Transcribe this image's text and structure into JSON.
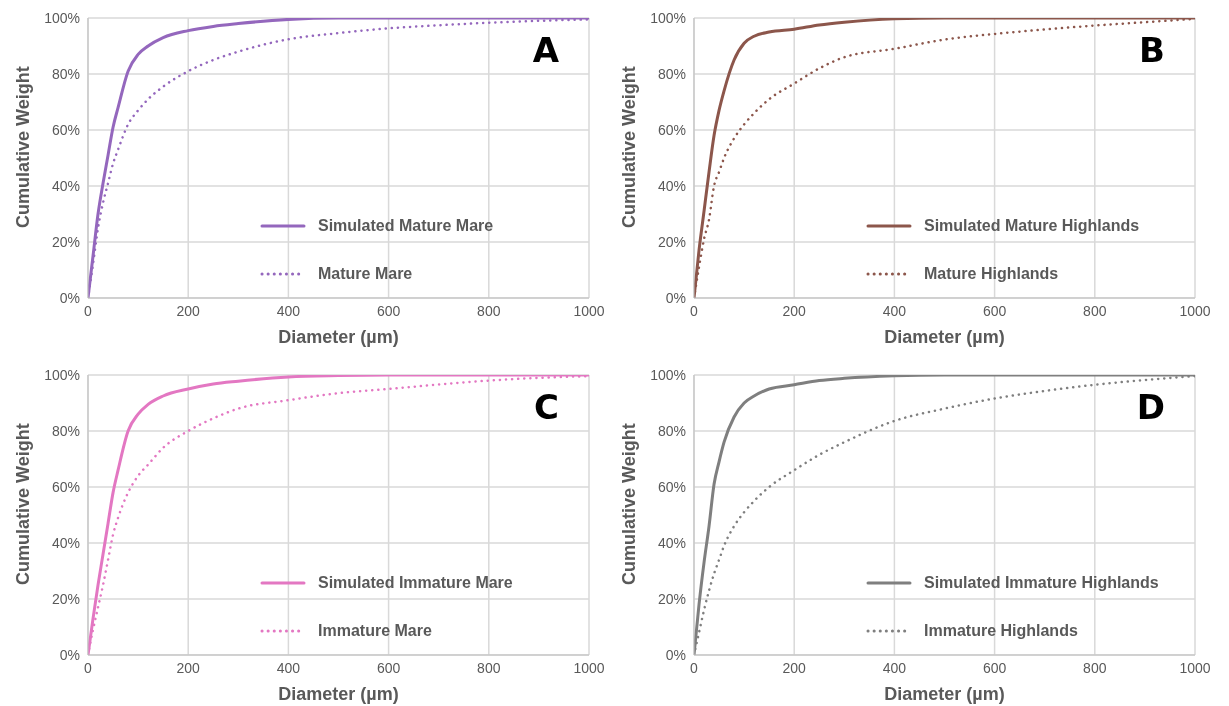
{
  "chart_data": [
    {
      "type": "line",
      "xlabel": "Diameter (µm)",
      "ylabel": "Cumulative Weight",
      "annotations": [
        "A"
      ],
      "grid": true,
      "legend": "bottom right",
      "xlim": [
        0,
        1000
      ],
      "xticks": [
        0,
        200,
        400,
        600,
        800,
        1000
      ],
      "ylim": [
        0,
        100
      ],
      "yticks": [
        {
          "value": 0,
          "label": "0%"
        },
        {
          "value": 20,
          "label": "20%"
        },
        {
          "value": 40,
          "label": "40%"
        },
        {
          "value": 60,
          "label": "60%"
        },
        {
          "value": 80,
          "label": "80%"
        },
        {
          "value": 100,
          "label": "100%"
        }
      ],
      "x": [
        0,
        10,
        20,
        30,
        40,
        50,
        60,
        80,
        100,
        120,
        150,
        200,
        250,
        300,
        400,
        500,
        600,
        700,
        800,
        900,
        1000
      ],
      "series": [
        {
          "name": "Simulated Mature Mare",
          "color": "#9467bd",
          "line_style": "solid",
          "values": [
            0,
            15,
            30,
            41,
            51,
            61,
            68,
            81,
            87,
            90,
            93,
            95.5,
            97,
            98,
            99.5,
            100,
            100,
            100,
            100,
            100,
            100
          ]
        },
        {
          "name": "Mature Mare",
          "color": "#9467bd",
          "line_style": "dotted",
          "values": [
            0,
            12,
            25,
            34,
            41,
            48,
            53,
            62,
            67,
            71,
            75.5,
            81,
            85,
            88,
            92.4,
            94.6,
            96.3,
            97.4,
            98.3,
            99,
            99.5
          ]
        }
      ]
    },
    {
      "type": "line",
      "xlabel": "Diameter (µm)",
      "ylabel": "Cumulative Weight",
      "annotations": [
        "B"
      ],
      "grid": true,
      "legend": "bottom right",
      "xlim": [
        0,
        1000
      ],
      "xticks": [
        0,
        200,
        400,
        600,
        800,
        1000
      ],
      "ylim": [
        0,
        100
      ],
      "yticks": [
        {
          "value": 0,
          "label": "0%"
        },
        {
          "value": 20,
          "label": "20%"
        },
        {
          "value": 40,
          "label": "40%"
        },
        {
          "value": 60,
          "label": "60%"
        },
        {
          "value": 80,
          "label": "80%"
        },
        {
          "value": 100,
          "label": "100%"
        }
      ],
      "x": [
        0,
        10,
        20,
        30,
        40,
        50,
        60,
        80,
        100,
        120,
        150,
        200,
        250,
        300,
        400,
        500,
        600,
        700,
        800,
        900,
        1000
      ],
      "series": [
        {
          "name": "Simulated Mature Highlands",
          "color": "#8c564b",
          "line_style": "solid",
          "values": [
            0,
            17,
            31,
            45,
            58,
            67,
            74,
            85,
            91,
            93.5,
            95,
            96,
            97.5,
            98.5,
            99.7,
            100,
            100,
            100,
            100,
            100,
            100
          ]
        },
        {
          "name": "Mature Highlands",
          "color": "#8c564b",
          "line_style": "dotted",
          "values": [
            0,
            11,
            21,
            28,
            40,
            45,
            50,
            57,
            62,
            66,
            71,
            76.6,
            82,
            86,
            89,
            92.3,
            94.3,
            95.9,
            97.3,
            98.5,
            99.7
          ]
        }
      ]
    },
    {
      "type": "line",
      "xlabel": "Diameter (µm)",
      "ylabel": "Cumulative Weight",
      "annotations": [
        "C"
      ],
      "grid": true,
      "legend": "bottom right",
      "xlim": [
        0,
        1000
      ],
      "xticks": [
        0,
        200,
        400,
        600,
        800,
        1000
      ],
      "ylim": [
        0,
        100
      ],
      "yticks": [
        {
          "value": 0,
          "label": "0%"
        },
        {
          "value": 20,
          "label": "20%"
        },
        {
          "value": 40,
          "label": "40%"
        },
        {
          "value": 60,
          "label": "60%"
        },
        {
          "value": 80,
          "label": "80%"
        },
        {
          "value": 100,
          "label": "100%"
        }
      ],
      "x": [
        0,
        10,
        20,
        30,
        40,
        50,
        60,
        80,
        100,
        120,
        150,
        200,
        250,
        300,
        400,
        500,
        600,
        700,
        800,
        900,
        1000
      ],
      "series": [
        {
          "name": "Simulated Immature Mare",
          "color": "#e377c2",
          "line_style": "solid",
          "values": [
            0,
            13,
            25,
            36,
            47,
            58,
            66,
            80,
            86,
            89.5,
            92.5,
            95,
            96.8,
            97.8,
            99.3,
            99.8,
            100,
            100,
            100,
            100,
            100
          ]
        },
        {
          "name": "Immature Mare",
          "color": "#e377c2",
          "line_style": "dotted",
          "values": [
            0,
            9,
            17,
            25,
            34,
            43,
            49,
            58,
            64,
            68,
            74,
            80,
            84.5,
            88,
            91,
            93.5,
            95,
            96.6,
            98,
            99,
            99.6
          ]
        }
      ]
    },
    {
      "type": "line",
      "xlabel": "Diameter (µm)",
      "ylabel": "Cumulative Weight",
      "annotations": [
        "D"
      ],
      "grid": true,
      "legend": "bottom right",
      "xlim": [
        0,
        1000
      ],
      "xticks": [
        0,
        200,
        400,
        600,
        800,
        1000
      ],
      "ylim": [
        0,
        100
      ],
      "yticks": [
        {
          "value": 0,
          "label": "0%"
        },
        {
          "value": 20,
          "label": "20%"
        },
        {
          "value": 40,
          "label": "40%"
        },
        {
          "value": 60,
          "label": "60%"
        },
        {
          "value": 80,
          "label": "80%"
        },
        {
          "value": 100,
          "label": "100%"
        }
      ],
      "x": [
        0,
        10,
        20,
        30,
        40,
        50,
        60,
        80,
        100,
        120,
        150,
        200,
        250,
        300,
        400,
        500,
        600,
        700,
        800,
        900,
        1000
      ],
      "series": [
        {
          "name": "Simulated Immature Highlands",
          "color": "#7f7f7f",
          "line_style": "solid",
          "values": [
            0,
            18,
            33,
            46,
            61,
            69,
            76,
            85,
            90,
            92.5,
            95,
            96.5,
            98,
            98.8,
            99.7,
            100,
            100,
            100,
            100,
            100,
            100
          ]
        },
        {
          "name": "Immature Highlands",
          "color": "#7f7f7f",
          "line_style": "dotted",
          "values": [
            0,
            8,
            16,
            23,
            29,
            34,
            39,
            46,
            51,
            55,
            60,
            66,
            71.5,
            76,
            83.6,
            88,
            91.6,
            94.3,
            96.5,
            98.2,
            99.6
          ]
        }
      ]
    }
  ]
}
